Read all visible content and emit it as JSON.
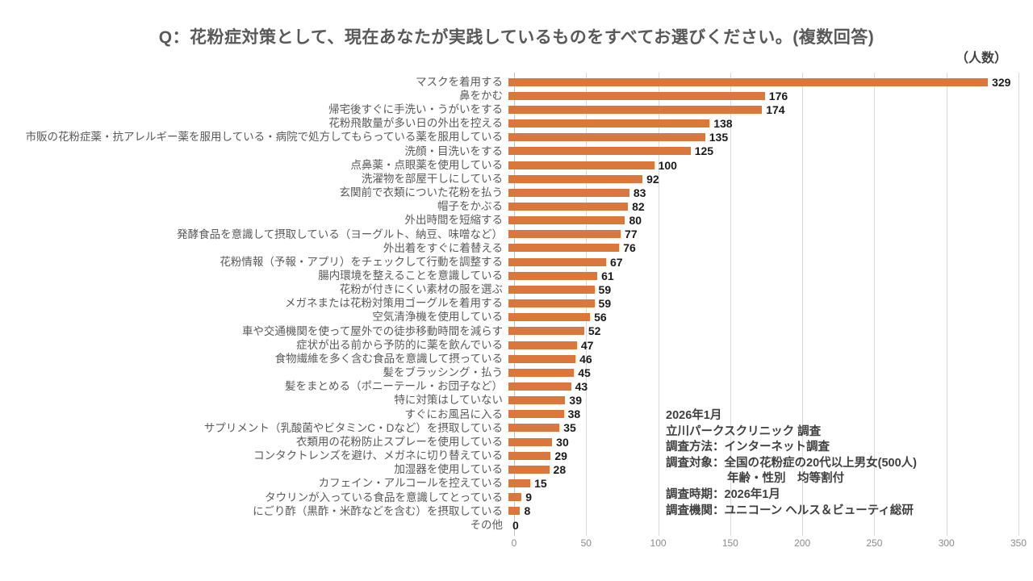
{
  "title": "Q：花粉症対策として、現在あなたが実践しているものをすべてお選びください。(複数回答)",
  "unit_label": "（人数）",
  "colors": {
    "bar": "#d9773d",
    "grid": "#d9d9d9",
    "axis_line": "#bfbfbf",
    "title_text": "#595959",
    "category_text": "#595959",
    "value_text": "#1a1a1a",
    "tick_text": "#8a8a8a",
    "annotation_text": "#3f3f3f"
  },
  "chart_data": {
    "type": "bar",
    "orientation": "horizontal",
    "title": "Q：花粉症対策として、現在あなたが実践しているものをすべてお選びください。(複数回答)",
    "xlabel": "",
    "ylabel": "",
    "unit": "人数",
    "xlim": [
      0,
      350
    ],
    "x_ticks": [
      0,
      50,
      100,
      150,
      200,
      250,
      300,
      350
    ],
    "grid": true,
    "legend": false,
    "categories": [
      "マスクを着用する",
      "鼻をかむ",
      "帰宅後すぐに手洗い・うがいをする",
      "花粉飛散量が多い日の外出を控える",
      "市販の花粉症薬・抗アレルギー薬を服用している・病院で処方してもらっている薬を服用している",
      "洗顔・目洗いをする",
      "点鼻薬・点眼薬を使用している",
      "洗濯物を部屋干しにしている",
      "玄関前で衣類についた花粉を払う",
      "帽子をかぶる",
      "外出時間を短縮する",
      "発酵食品を意識して摂取している（ヨーグルト、納豆、味噌など）",
      "外出着をすぐに着替える",
      "花粉情報（予報・アプリ）をチェックして行動を調整する",
      "腸内環境を整えることを意識している",
      "花粉が付きにくい素材の服を選ぶ",
      "メガネまたは花粉対策用ゴーグルを着用する",
      "空気清浄機を使用している",
      "車や交通機関を使って屋外での徒歩移動時間を減らす",
      "症状が出る前から予防的に薬を飲んでいる",
      "食物繊維を多く含む食品を意識して摂っている",
      "髪をブラッシング・払う",
      "髪をまとめる（ポニーテール・お団子など）",
      "特に対策はしていない",
      "すぐにお風呂に入る",
      "サプリメント（乳酸菌やビタミンC・Dなど）を摂取している",
      "衣類用の花粉防止スプレーを使用している",
      "コンタクトレンズを避け、メガネに切り替えている",
      "加湿器を使用している",
      "カフェイン・アルコールを控えている",
      "タウリンが入っている食品を意識してとっている",
      "にごり酢（黒酢・米酢などを含む）を摂取している",
      "その他"
    ],
    "values": [
      329,
      176,
      174,
      138,
      135,
      125,
      100,
      92,
      83,
      82,
      80,
      77,
      76,
      67,
      61,
      59,
      59,
      56,
      52,
      47,
      46,
      45,
      43,
      39,
      38,
      35,
      30,
      29,
      28,
      15,
      9,
      8,
      0
    ]
  },
  "annotation": {
    "lines": [
      {
        "text": "2026年1月",
        "indent": false
      },
      {
        "text": "立川パークスクリニック 調査",
        "indent": false
      },
      {
        "text": "調査方法：インターネット調査",
        "indent": false
      },
      {
        "text": "調査対象：全国の花粉症の20代以上男女(500人)",
        "indent": false
      },
      {
        "text": "年齢・性別　均等割付",
        "indent": true
      },
      {
        "text": "調査時期：2026年1月",
        "indent": false
      },
      {
        "text": "調査機関：ユニコーン ヘルス＆ビューティ総研",
        "indent": false
      }
    ]
  }
}
